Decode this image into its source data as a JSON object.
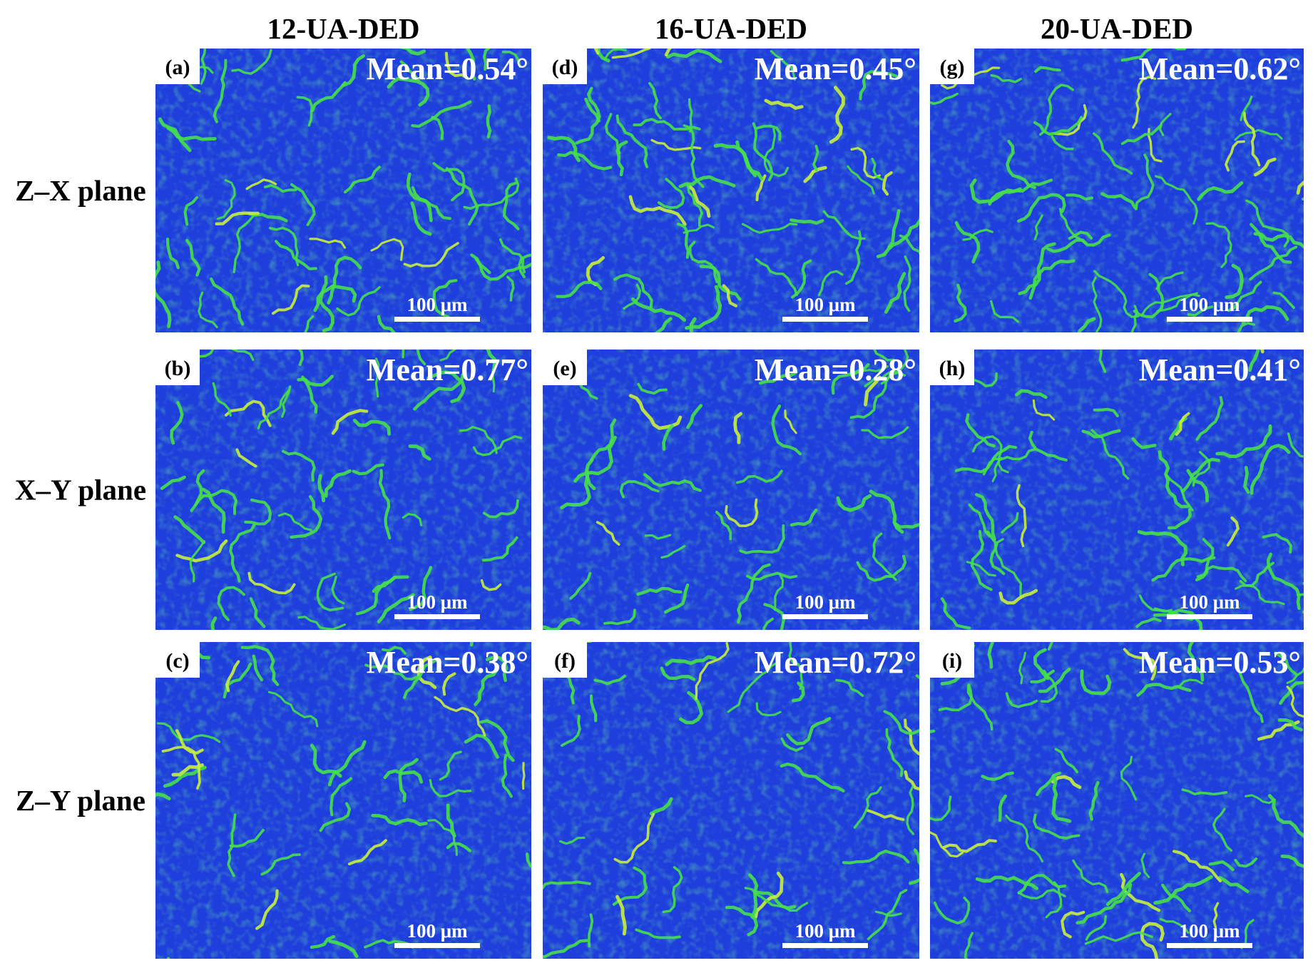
{
  "columns": [
    "12-UA-DED",
    "16-UA-DED",
    "20-UA-DED"
  ],
  "rows": [
    "Z–X plane",
    "X–Y plane",
    "Z–Y plane"
  ],
  "panels": [
    {
      "label": "(a)",
      "mean": "Mean=0.54°",
      "scale_bar": "100 μm"
    },
    {
      "label": "(d)",
      "mean": "Mean=0.45°",
      "scale_bar": "100 μm"
    },
    {
      "label": "(g)",
      "mean": "Mean=0.62°",
      "scale_bar": "100 μm"
    },
    {
      "label": "(b)",
      "mean": "Mean=0.77°",
      "scale_bar": "100 μm"
    },
    {
      "label": "(e)",
      "mean": "Mean=0.28°",
      "scale_bar": "100 μm"
    },
    {
      "label": "(h)",
      "mean": "Mean=0.41°",
      "scale_bar": "100 μm"
    },
    {
      "label": "(c)",
      "mean": "Mean=0.38°",
      "scale_bar": "100 μm"
    },
    {
      "label": "(f)",
      "mean": "Mean=0.72°",
      "scale_bar": "100 μm"
    },
    {
      "label": "(i)",
      "mean": "Mean=0.53°",
      "scale_bar": "100 μm"
    }
  ]
}
